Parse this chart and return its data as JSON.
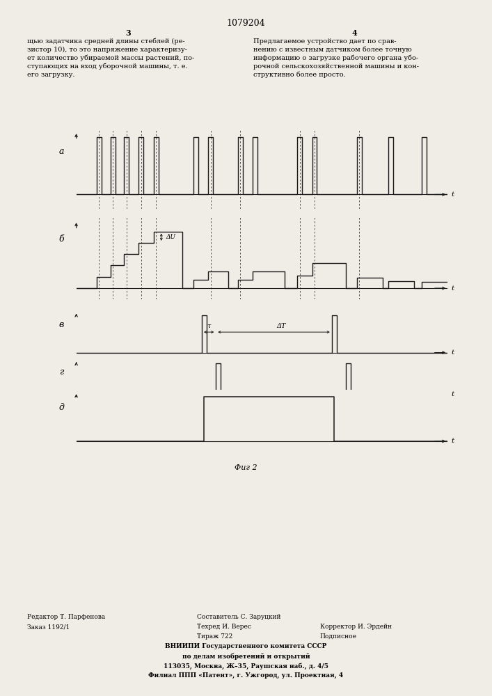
{
  "title": "1079204",
  "fig2_label": "Фиг 2",
  "background_color": "#f0ede6",
  "line_color": "#1a1a1a",
  "signal_labels": [
    "а",
    "б",
    "в",
    "г",
    "д"
  ],
  "left_col_num": "3",
  "right_col_num": "4",
  "left_text": "щью задатчика средней длины стеблей (ре-\nзистор 10), то это напряжение характеризу-\nет количество убираемой массы растений, по-\nступающих на вход уборочной машины, т. е.\nего загрузку.",
  "right_text": "Предлагаемое устройство дает по срав-\nнению с известным датчиком более точную\nинформацию о загрузке рабочего органа убо-\nрочной сельскохозяйственной машины и кон-\nструктивно более просто.",
  "footer_editor": "Редактор Т. Парфенова",
  "footer_composer": "Составитель С. Заруцкий",
  "footer_order": "Заказ 1192/1",
  "footer_tech": "Техред И. Верес",
  "footer_corrector": "Корректор И. Эрдейн",
  "footer_circulation": "Тираж 722",
  "footer_signed": "Подписное",
  "footer_org1": "ВНИИПИ Государственного комитета СССР",
  "footer_org2": "по делам изобретений и открытий",
  "footer_addr": "113035, Москва, Ж–35, Раушская наб., д. 4/5",
  "footer_branch": "Филиал ППП «Патент», г. Ужгород, ул. Проектная, 4"
}
